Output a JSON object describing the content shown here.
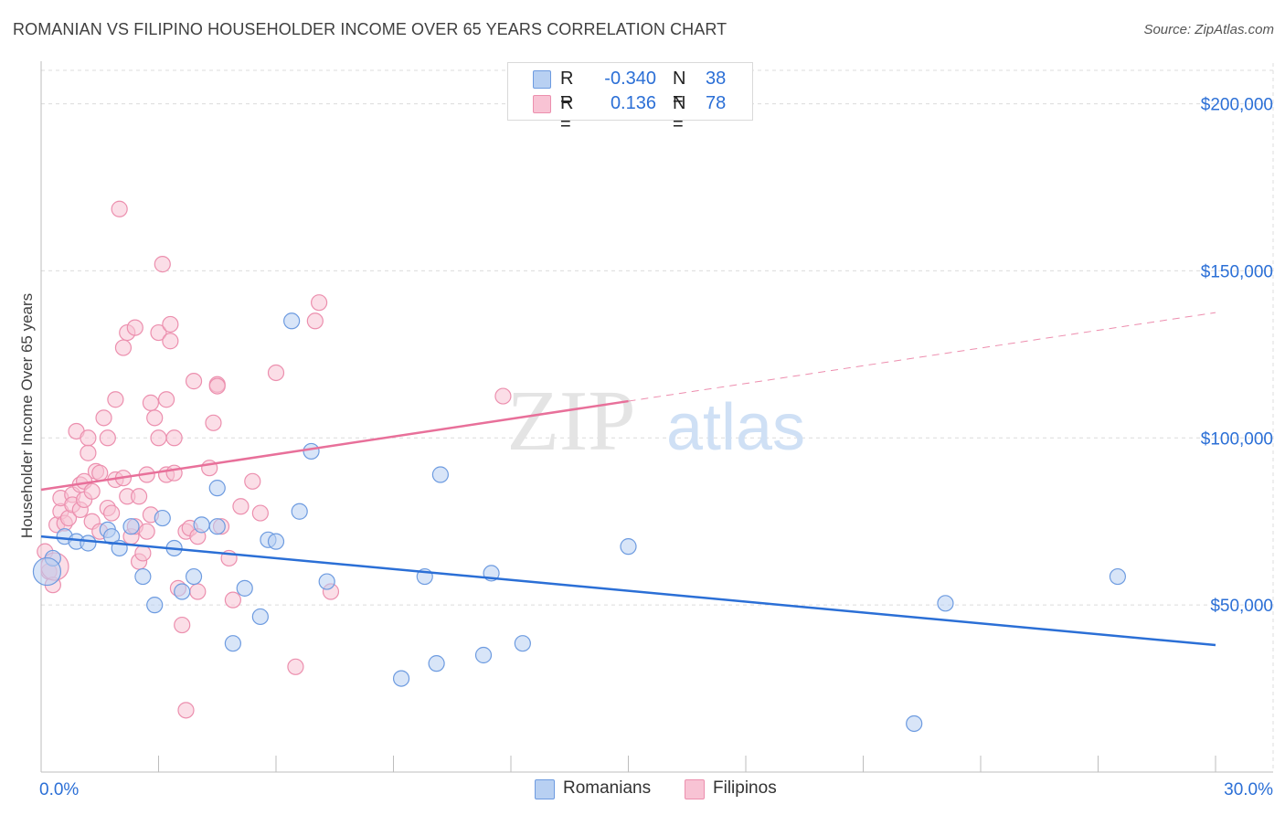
{
  "title": "ROMANIAN VS FILIPINO HOUSEHOLDER INCOME OVER 65 YEARS CORRELATION CHART",
  "source": "Source: ZipAtlas.com",
  "watermark": {
    "zip": "ZIP",
    "atlas": "atlas"
  },
  "legend": {
    "r_label": "R =",
    "n_label": "N =",
    "rows": [
      {
        "name": "Romanians",
        "r": "-0.340",
        "n": "38",
        "fill": "#b8d0f2",
        "stroke": "#6d9be0"
      },
      {
        "name": "Filipinos",
        "r": "0.136",
        "n": "78",
        "fill": "#f8c3d4",
        "stroke": "#ec8fae"
      }
    ]
  },
  "bottom_legend": [
    {
      "name": "Romanians",
      "fill": "#b8d0f2",
      "stroke": "#6d9be0"
    },
    {
      "name": "Filipinos",
      "fill": "#f8c3d4",
      "stroke": "#ec8fae"
    }
  ],
  "colors": {
    "romanian_line": "#2b6fd6",
    "filipino_line": "#e8709a",
    "grid": "#dcdcdc",
    "tick_label": "#2b6fd6"
  },
  "chart_data": {
    "type": "scatter",
    "title": "ROMANIAN VS FILIPINO HOUSEHOLDER INCOME OVER 65 YEARS CORRELATION CHART",
    "xlabel": "",
    "ylabel": "Householder Income Over 65 years",
    "xlim": [
      0,
      30
    ],
    "ylim": [
      0,
      210000
    ],
    "x_tick_labels": [
      {
        "value": 0,
        "label": "0.0%"
      },
      {
        "value": 30,
        "label": "30.0%"
      }
    ],
    "y_tick_labels": [
      {
        "value": 50000,
        "label": "$50,000"
      },
      {
        "value": 100000,
        "label": "$100,000"
      },
      {
        "value": 150000,
        "label": "$150,000"
      },
      {
        "value": 200000,
        "label": "$200,000"
      }
    ],
    "series": [
      {
        "name": "Romanians",
        "trend": {
          "x": [
            0,
            30
          ],
          "y": [
            70500,
            38000
          ],
          "dashed_from": null
        },
        "points": [
          [
            0.3,
            64000
          ],
          [
            0.6,
            70500
          ],
          [
            0.9,
            69000
          ],
          [
            1.2,
            68500
          ],
          [
            1.7,
            72500
          ],
          [
            1.8,
            70500
          ],
          [
            2.0,
            67000
          ],
          [
            2.3,
            73500
          ],
          [
            2.6,
            58500
          ],
          [
            2.9,
            50000
          ],
          [
            3.1,
            76000
          ],
          [
            3.4,
            67000
          ],
          [
            3.6,
            54000
          ],
          [
            3.9,
            58500
          ],
          [
            4.1,
            74000
          ],
          [
            4.5,
            73500
          ],
          [
            4.5,
            85000
          ],
          [
            4.9,
            38500
          ],
          [
            5.2,
            55000
          ],
          [
            5.6,
            46500
          ],
          [
            5.8,
            69500
          ],
          [
            6.0,
            69000
          ],
          [
            6.4,
            135000
          ],
          [
            6.6,
            78000
          ],
          [
            6.9,
            96000
          ],
          [
            7.3,
            57000
          ],
          [
            9.2,
            28000
          ],
          [
            9.8,
            58500
          ],
          [
            10.1,
            32500
          ],
          [
            10.2,
            89000
          ],
          [
            11.3,
            35000
          ],
          [
            11.5,
            59500
          ],
          [
            12.3,
            38500
          ],
          [
            15.0,
            67500
          ],
          [
            22.3,
            14500
          ],
          [
            23.1,
            50500
          ],
          [
            27.5,
            58500
          ],
          [
            0.15,
            60000
          ]
        ]
      },
      {
        "name": "Filipinos",
        "trend": {
          "x": [
            0,
            30
          ],
          "y": [
            84500,
            137500
          ],
          "dashed_from": 15
        },
        "points": [
          [
            0.1,
            66000
          ],
          [
            0.2,
            60000
          ],
          [
            0.3,
            56000
          ],
          [
            0.4,
            74000
          ],
          [
            0.5,
            78000
          ],
          [
            0.5,
            82000
          ],
          [
            0.6,
            74500
          ],
          [
            0.7,
            76000
          ],
          [
            0.8,
            83000
          ],
          [
            0.8,
            80000
          ],
          [
            0.9,
            102000
          ],
          [
            1.0,
            78500
          ],
          [
            1.0,
            86000
          ],
          [
            1.1,
            87000
          ],
          [
            1.1,
            81500
          ],
          [
            1.2,
            95500
          ],
          [
            1.2,
            100000
          ],
          [
            1.3,
            84000
          ],
          [
            1.3,
            75000
          ],
          [
            1.4,
            90000
          ],
          [
            1.5,
            89500
          ],
          [
            1.5,
            72000
          ],
          [
            1.6,
            106000
          ],
          [
            1.7,
            79000
          ],
          [
            1.7,
            100000
          ],
          [
            1.8,
            77500
          ],
          [
            1.9,
            87500
          ],
          [
            1.9,
            111500
          ],
          [
            2.0,
            168500
          ],
          [
            2.1,
            88000
          ],
          [
            2.1,
            127000
          ],
          [
            2.2,
            131500
          ],
          [
            2.2,
            82500
          ],
          [
            2.3,
            70500
          ],
          [
            2.4,
            73500
          ],
          [
            2.4,
            133000
          ],
          [
            2.5,
            63000
          ],
          [
            2.5,
            82500
          ],
          [
            2.6,
            65500
          ],
          [
            2.7,
            89000
          ],
          [
            2.7,
            72000
          ],
          [
            2.8,
            77000
          ],
          [
            2.8,
            110500
          ],
          [
            2.9,
            106000
          ],
          [
            3.0,
            100000
          ],
          [
            3.0,
            131500
          ],
          [
            3.1,
            152000
          ],
          [
            3.2,
            89000
          ],
          [
            3.2,
            111500
          ],
          [
            3.3,
            134000
          ],
          [
            3.3,
            129000
          ],
          [
            3.4,
            89500
          ],
          [
            3.4,
            100000
          ],
          [
            3.5,
            55000
          ],
          [
            3.6,
            44000
          ],
          [
            3.7,
            72000
          ],
          [
            3.7,
            18500
          ],
          [
            3.8,
            73000
          ],
          [
            3.9,
            117000
          ],
          [
            4.0,
            54000
          ],
          [
            4.0,
            70500
          ],
          [
            4.3,
            91000
          ],
          [
            4.4,
            104500
          ],
          [
            4.5,
            116000
          ],
          [
            4.5,
            115500
          ],
          [
            4.6,
            73500
          ],
          [
            4.8,
            64000
          ],
          [
            4.9,
            51500
          ],
          [
            5.1,
            79500
          ],
          [
            5.4,
            87000
          ],
          [
            5.6,
            77500
          ],
          [
            6.0,
            119500
          ],
          [
            6.5,
            31500
          ],
          [
            7.0,
            135000
          ],
          [
            7.1,
            140500
          ],
          [
            7.4,
            54000
          ],
          [
            11.8,
            112500
          ],
          [
            0.35,
            61500
          ]
        ]
      }
    ]
  }
}
